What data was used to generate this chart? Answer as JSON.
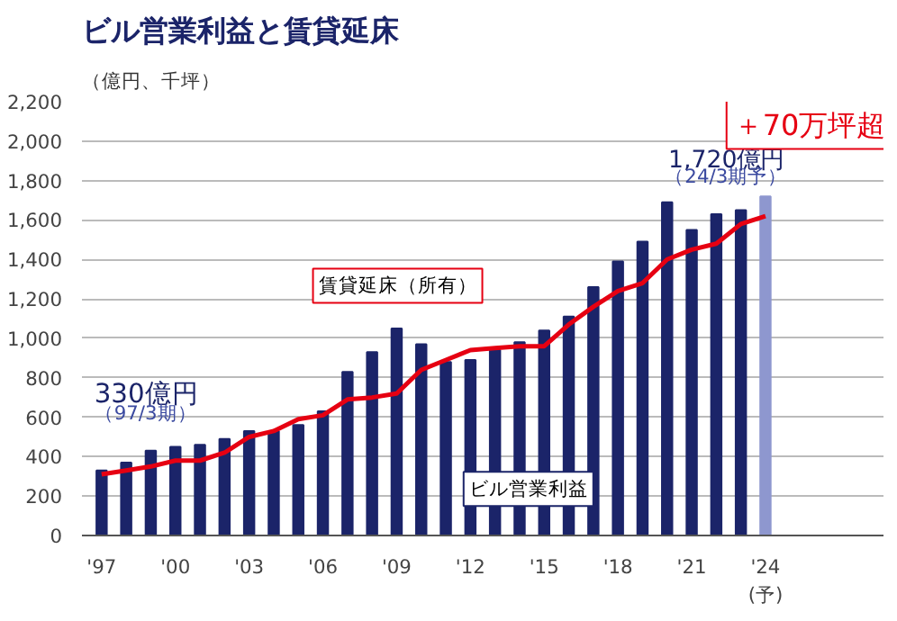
{
  "chart_data": {
    "type": "bar",
    "title": "ビル営業利益と賃貸延床",
    "ylabel": "（億円、千坪）",
    "categories": [
      "'97",
      null,
      null,
      "'00",
      null,
      null,
      "'03",
      null,
      null,
      "'06",
      null,
      null,
      "'09",
      null,
      null,
      "'12",
      null,
      null,
      "'15",
      null,
      null,
      "'18",
      null,
      null,
      "'21",
      null,
      null,
      "'24\n(予)"
    ],
    "series": [
      {
        "name": "ビル営業利益",
        "type": "bar",
        "colors": [
          "#1b2469",
          "#1b2469",
          "#1b2469",
          "#1b2469",
          "#1b2469",
          "#1b2469",
          "#1b2469",
          "#1b2469",
          "#1b2469",
          "#1b2469",
          "#1b2469",
          "#1b2469",
          "#1b2469",
          "#1b2469",
          "#1b2469",
          "#1b2469",
          "#1b2469",
          "#1b2469",
          "#1b2469",
          "#1b2469",
          "#1b2469",
          "#1b2469",
          "#1b2469",
          "#1b2469",
          "#1b2469",
          "#1b2469",
          "#1b2469",
          "#8e97cf"
        ],
        "values": [
          330,
          370,
          430,
          450,
          460,
          490,
          530,
          530,
          560,
          630,
          830,
          930,
          1050,
          970,
          880,
          890,
          940,
          980,
          1040,
          1110,
          1260,
          1390,
          1490,
          1690,
          1550,
          1630,
          1650,
          1720
        ]
      },
      {
        "name": "賃貸延床（所有）",
        "type": "line",
        "color": "#e60012",
        "values": [
          310,
          330,
          350,
          380,
          380,
          420,
          500,
          530,
          590,
          610,
          690,
          700,
          720,
          840,
          890,
          940,
          950,
          960,
          960,
          1070,
          1160,
          1240,
          1280,
          1400,
          1450,
          1480,
          1580,
          1620
        ]
      }
    ],
    "annotations": [
      "330億円",
      "（97/3期）",
      "1,720億円",
      "（24/3期予）",
      "＋70万坪超"
    ],
    "ylim": [
      0,
      2200
    ],
    "yticks": [
      0,
      200,
      400,
      600,
      800,
      {
        "value": 1000,
        "label": "1,000"
      },
      {
        "value": 1200,
        "label": "1,200"
      },
      {
        "value": 1400,
        "label": "1,400"
      },
      {
        "value": 1600,
        "label": "1,600"
      },
      {
        "value": 1800,
        "label": "1,800"
      },
      {
        "value": 2000,
        "label": "2,000"
      },
      {
        "value": 2200,
        "label": "2,200"
      }
    ],
    "grid": "y",
    "legend": false
  }
}
